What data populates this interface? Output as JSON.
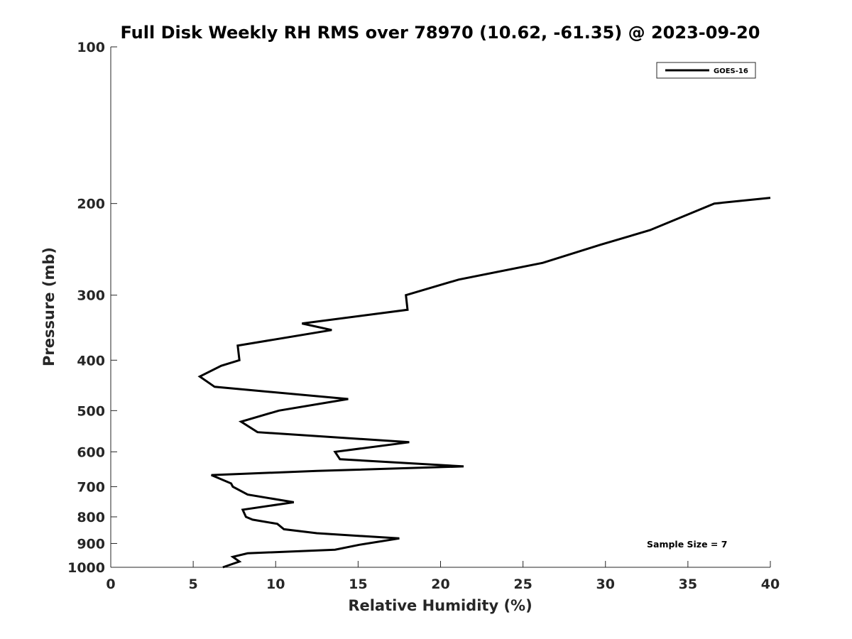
{
  "chart_data": {
    "type": "line",
    "title": "Full Disk Weekly RH RMS over 78970 (10.62, -61.35) @ 2023-09-20",
    "xlabel": "Relative Humidity (%)",
    "ylabel": "Pressure (mb)",
    "xlim": [
      0,
      40
    ],
    "ylim": [
      1000,
      100
    ],
    "yscale": "log",
    "grid": false,
    "legend_position": "top-right",
    "x_ticks": [
      "0",
      "5",
      "10",
      "15",
      "20",
      "25",
      "30",
      "35",
      "40"
    ],
    "y_ticks": [
      "100",
      "200",
      "300",
      "400",
      "500",
      "600",
      "700",
      "800",
      "900",
      "1000"
    ],
    "series": [
      {
        "name": "GOES-16",
        "color": "#000000",
        "points": [
          [
            6.8,
            1000
          ],
          [
            7.8,
            975
          ],
          [
            7.4,
            955
          ],
          [
            8.3,
            940
          ],
          [
            13.6,
            925
          ],
          [
            15.1,
            905
          ],
          [
            17.5,
            880
          ],
          [
            12.5,
            860
          ],
          [
            10.5,
            845
          ],
          [
            10.1,
            825
          ],
          [
            8.6,
            810
          ],
          [
            8.2,
            800
          ],
          [
            8.0,
            775
          ],
          [
            11.1,
            750
          ],
          [
            8.3,
            725
          ],
          [
            7.4,
            700
          ],
          [
            7.3,
            690
          ],
          [
            6.1,
            665
          ],
          [
            12.5,
            653
          ],
          [
            21.4,
            640
          ],
          [
            13.9,
            620
          ],
          [
            13.6,
            600
          ],
          [
            18.1,
            575
          ],
          [
            8.9,
            550
          ],
          [
            7.9,
            525
          ],
          [
            10.2,
            500
          ],
          [
            14.4,
            475
          ],
          [
            6.3,
            450
          ],
          [
            5.4,
            430
          ],
          [
            6.7,
            410
          ],
          [
            7.8,
            400
          ],
          [
            7.7,
            375
          ],
          [
            13.4,
            350
          ],
          [
            11.6,
            340
          ],
          [
            18.0,
            320
          ],
          [
            17.9,
            300
          ],
          [
            21.1,
            280
          ],
          [
            26.2,
            260
          ],
          [
            29.7,
            240
          ],
          [
            32.7,
            225
          ],
          [
            36.6,
            200
          ],
          [
            40.0,
            195
          ]
        ]
      }
    ],
    "annotation": "Sample Size = 7"
  }
}
